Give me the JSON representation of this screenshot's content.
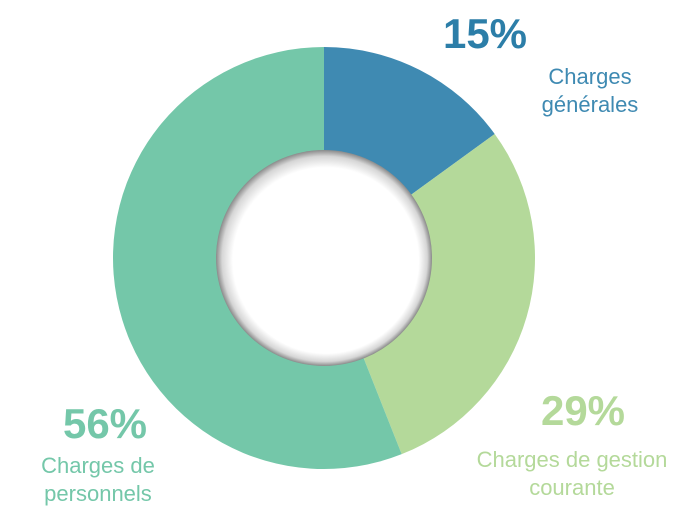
{
  "chart_data": {
    "type": "donut",
    "categories": [
      "Charges générales",
      "Charges de gestion courante",
      "Charges de personnels"
    ],
    "values": [
      15,
      29,
      56
    ],
    "value_labels": [
      "15%",
      "29%",
      "56%"
    ],
    "colors": [
      "#3f8ab2",
      "#b4d99a",
      "#74c7a9"
    ]
  }
}
